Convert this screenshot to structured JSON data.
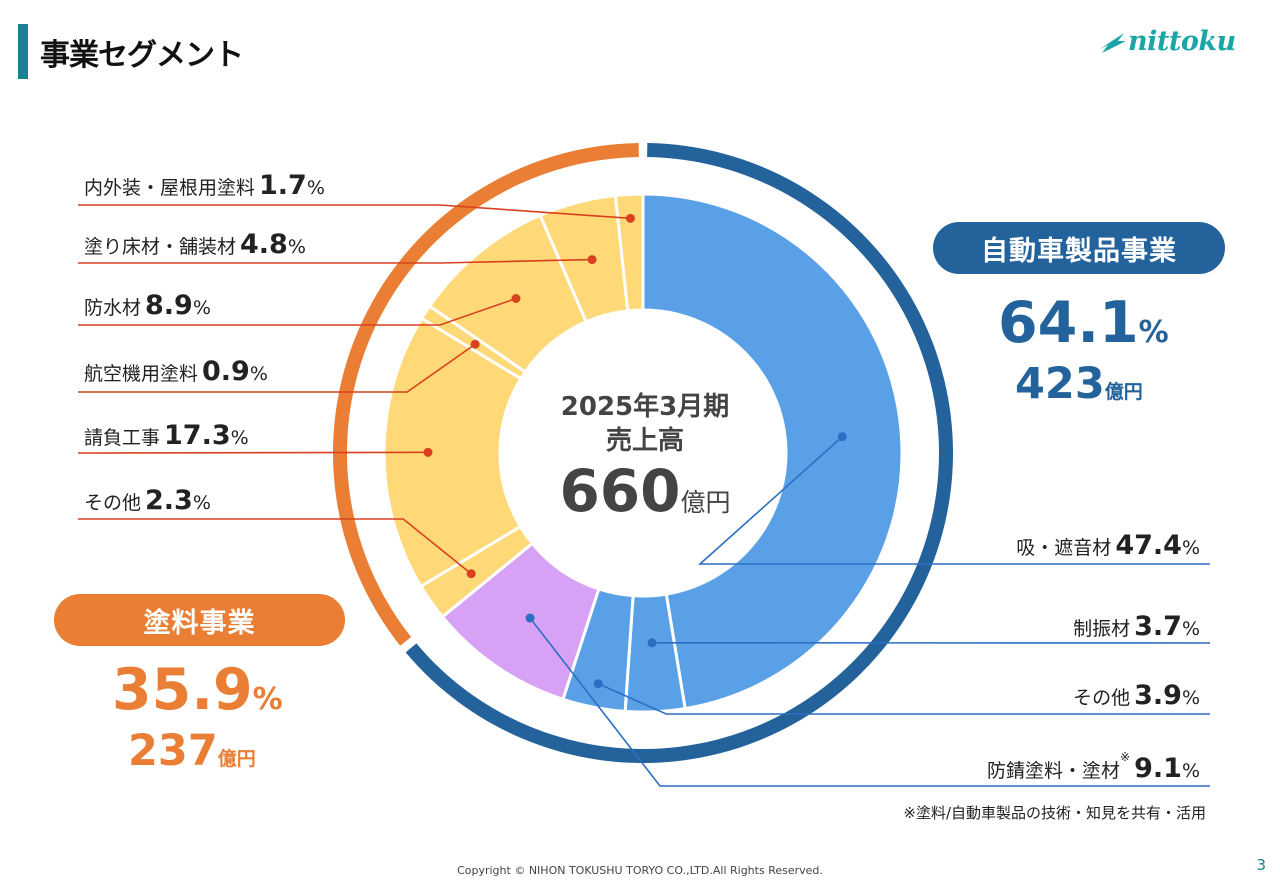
{
  "header": {
    "title": "事業セグメント",
    "logo_text": "nittoku"
  },
  "center": {
    "period": "2025年3月期",
    "label": "売上高",
    "value": "660",
    "unit": "億円"
  },
  "segments": {
    "automotive": {
      "name": "自動車製品事業",
      "pct": "64.1",
      "pct_unit": "%",
      "amount": "423",
      "amount_unit": "億円",
      "color": "#23629a"
    },
    "paint": {
      "name": "塗料事業",
      "pct": "35.9",
      "pct_unit": "%",
      "amount": "237",
      "amount_unit": "億円",
      "color": "#e97e34"
    }
  },
  "chart_data": {
    "type": "pie",
    "title": "2025年3月期 売上高 660億円",
    "unit": "%",
    "slices": [
      {
        "name": "吸・遮音材",
        "value": 47.4,
        "group": "自動車製品事業",
        "color": "#5aa0e6"
      },
      {
        "name": "制振材",
        "value": 3.7,
        "group": "自動車製品事業",
        "color": "#5aa0e6"
      },
      {
        "name": "その他",
        "value": 3.9,
        "group": "自動車製品事業",
        "color": "#5aa0e6"
      },
      {
        "name": "防錆塗料・塗材",
        "value": 9.1,
        "group": "自動車製品事業",
        "color": "#d7a2f5"
      },
      {
        "name": "その他",
        "value": 2.3,
        "group": "塗料事業",
        "color": "#ffd878"
      },
      {
        "name": "請負工事",
        "value": 17.3,
        "group": "塗料事業",
        "color": "#ffd878"
      },
      {
        "name": "航空機用塗料",
        "value": 0.9,
        "group": "塗料事業",
        "color": "#ffd878"
      },
      {
        "name": "防水材",
        "value": 8.9,
        "group": "塗料事業",
        "color": "#ffd878"
      },
      {
        "name": "塗り床材・舗装材",
        "value": 4.8,
        "group": "塗料事業",
        "color": "#ffd878"
      },
      {
        "name": "内外装・屋根用塗料",
        "value": 1.7,
        "group": "塗料事業",
        "color": "#ffd878"
      }
    ],
    "outer_ring": [
      {
        "name": "自動車製品事業",
        "value": 64.1,
        "color": "#23629a"
      },
      {
        "name": "塗料事業",
        "value": 35.9,
        "color": "#e97e34"
      }
    ]
  },
  "labels": {
    "left": [
      {
        "name": "内外装・屋根用塗料",
        "value": "1.7",
        "unit": "%"
      },
      {
        "name": "塗り床材・舗装材",
        "value": "4.8",
        "unit": "%"
      },
      {
        "name": "防水材",
        "value": "8.9",
        "unit": "%"
      },
      {
        "name": "航空機用塗料",
        "value": "0.9",
        "unit": "%"
      },
      {
        "name": "請負工事",
        "value": "17.3",
        "unit": "%"
      },
      {
        "name": "その他",
        "value": "2.3",
        "unit": "%"
      }
    ],
    "right": [
      {
        "name": "吸・遮音材",
        "value": "47.4",
        "unit": "%"
      },
      {
        "name": "制振材",
        "value": "3.7",
        "unit": "%"
      },
      {
        "name": "その他",
        "value": "3.9",
        "unit": "%"
      },
      {
        "name": "防錆塗料・塗材",
        "note_mark": "※",
        "value": "9.1",
        "unit": "%"
      }
    ]
  },
  "footnote": "※塗料/自動車製品の技術・知見を共有・活用",
  "copyright": "Copyright © NIHON TOKUSHU TORYO CO.,LTD.All Rights Reserved.",
  "page_number": "3"
}
